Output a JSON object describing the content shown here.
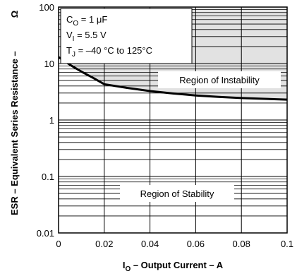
{
  "chart_data": {
    "type": "line",
    "ylabel": "ESR – Equivalent Series Resistance –",
    "yunit": "Ω",
    "xlabel": {
      "base": "I",
      "sub": "O",
      "rest": " – Output Current – A"
    },
    "x": [
      0,
      0.005,
      0.01,
      0.015,
      0.02,
      0.03,
      0.04,
      0.05,
      0.06,
      0.07,
      0.08,
      0.09,
      0.1
    ],
    "series": [
      {
        "color": "#000000",
        "values": [
          13,
          9.5,
          7.2,
          5.6,
          4.3,
          3.7,
          3.25,
          2.95,
          2.72,
          2.56,
          2.45,
          2.37,
          2.3
        ]
      }
    ],
    "shade_above": "#e2e2e2",
    "xlim": [
      0,
      0.1
    ],
    "xticks": [
      0,
      0.02,
      0.04,
      0.06,
      0.08,
      0.1
    ],
    "ylim": [
      0.01,
      100
    ],
    "yticks": [
      0.01,
      0.1,
      1,
      10,
      100
    ],
    "log_y": true,
    "grid": true,
    "conditions": [
      {
        "base": "C",
        "sub": "O",
        "rest": " = 1 μF"
      },
      {
        "base": "V",
        "sub": "I",
        "rest": " = 5.5 V"
      },
      {
        "base": "T",
        "sub": "J",
        "rest": " = –40 °C to 125°C"
      }
    ],
    "annotations": [
      "Region of Instability",
      "Region of Stability"
    ]
  }
}
